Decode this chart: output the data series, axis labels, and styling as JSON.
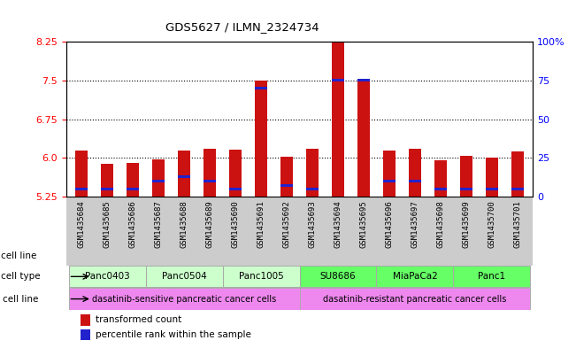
{
  "title": "GDS5627 / ILMN_2324734",
  "samples": [
    "GSM1435684",
    "GSM1435685",
    "GSM1435686",
    "GSM1435687",
    "GSM1435688",
    "GSM1435689",
    "GSM1435690",
    "GSM1435691",
    "GSM1435692",
    "GSM1435693",
    "GSM1435694",
    "GSM1435695",
    "GSM1435696",
    "GSM1435697",
    "GSM1435698",
    "GSM1435699",
    "GSM1435700",
    "GSM1435701"
  ],
  "transformed_count": [
    6.15,
    5.88,
    5.91,
    5.97,
    6.15,
    6.18,
    6.16,
    7.5,
    6.03,
    6.17,
    8.55,
    7.5,
    6.14,
    6.18,
    5.95,
    6.04,
    6.0,
    6.12
  ],
  "percentile_rank": [
    5,
    5,
    5,
    10,
    13,
    10,
    5,
    70,
    7,
    5,
    75,
    75,
    10,
    10,
    5,
    5,
    5,
    5
  ],
  "cell_lines": [
    {
      "name": "Panc0403",
      "start": 0,
      "end": 2,
      "color": "#ccffcc"
    },
    {
      "name": "Panc0504",
      "start": 3,
      "end": 5,
      "color": "#ccffcc"
    },
    {
      "name": "Panc1005",
      "start": 6,
      "end": 8,
      "color": "#ccffcc"
    },
    {
      "name": "SU8686",
      "start": 9,
      "end": 11,
      "color": "#66ff66"
    },
    {
      "name": "MiaPaCa2",
      "start": 12,
      "end": 14,
      "color": "#66ff66"
    },
    {
      "name": "Panc1",
      "start": 15,
      "end": 17,
      "color": "#66ff66"
    }
  ],
  "cell_types": [
    {
      "name": "dasatinib-sensitive pancreatic cancer cells",
      "start": 0,
      "end": 8,
      "color": "#ee88ee"
    },
    {
      "name": "dasatinib-resistant pancreatic cancer cells",
      "start": 9,
      "end": 17,
      "color": "#ee88ee"
    }
  ],
  "ylim_left": [
    5.25,
    8.25
  ],
  "ylim_right": [
    0,
    100
  ],
  "yticks_left": [
    5.25,
    6.0,
    6.75,
    7.5,
    8.25
  ],
  "yticks_right": [
    0,
    25,
    50,
    75,
    100
  ],
  "bar_color": "#cc1111",
  "percentile_color": "#2222cc",
  "bar_width": 0.5,
  "background_color": "#ffffff",
  "plot_bg_color": "#ffffff",
  "sample_bg_color": "#cccccc"
}
